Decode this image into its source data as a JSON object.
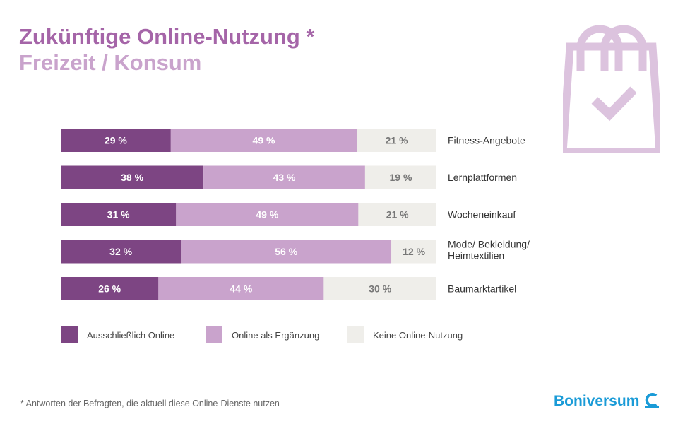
{
  "header": {
    "title": "Zukünftige Online-Nutzung *",
    "subtitle": "Freizeit / Konsum"
  },
  "icons": {
    "shopping_bag": "shopping-bag-check-icon"
  },
  "colors": {
    "online_only": "#7d4583",
    "online_supplement": "#c9a3cc",
    "no_online": "#efeeea",
    "title": "#a565a8",
    "subtitle": "#c9a3cc",
    "brand": "#1a9bd7"
  },
  "chart_data": {
    "type": "bar",
    "orientation": "horizontal",
    "stacked": true,
    "categories": [
      "Fitness-Angebote",
      "Lernplattformen",
      "Wocheneinkauf",
      "Mode/ Bekleidung/ Heimtextilien",
      "Baumarktartikel"
    ],
    "series": [
      {
        "name": "Ausschließlich  Online",
        "values": [
          29,
          38,
          31,
          32,
          26
        ],
        "labels": [
          "29 %",
          "38 %",
          "31 %",
          "32 %",
          "26 %"
        ]
      },
      {
        "name": "Online als Ergänzung",
        "values": [
          49,
          43,
          49,
          56,
          44
        ],
        "labels": [
          "49 %",
          "43 %",
          "49 %",
          "56 %",
          "44 %"
        ]
      },
      {
        "name": "Keine Online-Nutzung",
        "values": [
          21,
          19,
          21,
          12,
          30
        ],
        "labels": [
          "21 %",
          "19 %",
          "21 %",
          "12 %",
          "30 %"
        ]
      }
    ],
    "legend_position": "bottom",
    "grid": false
  },
  "footnote": "* Antworten der Befragten,  die aktuell diese Online-Dienste  nutzen",
  "brand": {
    "name": "Boniversum",
    "logo_icon": "boniversum-c-icon"
  }
}
